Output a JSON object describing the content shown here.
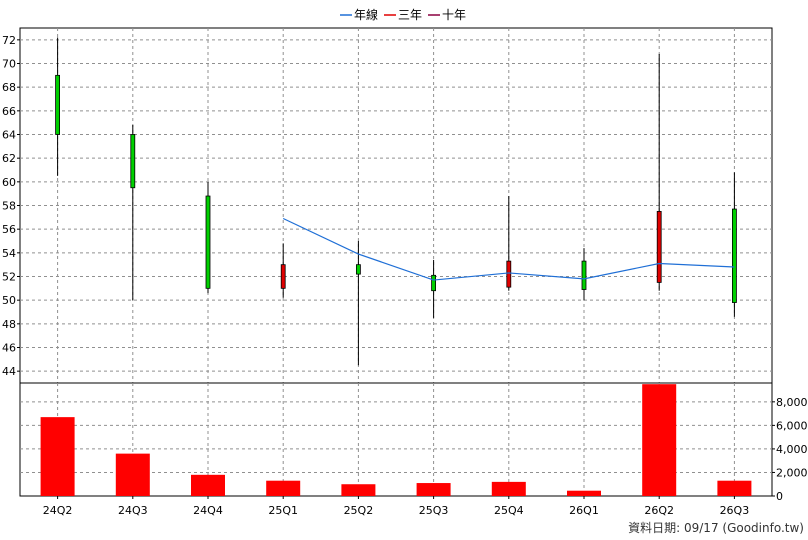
{
  "chart_data": {
    "type": "candlestick",
    "legend": [
      "年線",
      "三年",
      "十年"
    ],
    "colors": {
      "legend": [
        "#1f6fd6",
        "#e00000",
        "#8b0040"
      ],
      "up": "#00d000",
      "down": "#e00000",
      "ma_line": "#1f6fd6",
      "volume": "#ff0000",
      "grid": "#909090"
    },
    "categories": [
      "24Q2",
      "24Q3",
      "24Q4",
      "25Q1",
      "25Q2",
      "25Q3",
      "25Q4",
      "26Q1",
      "26Q2",
      "26Q3"
    ],
    "price_axis": {
      "ticks": [
        "44",
        "46",
        "48",
        "50",
        "52",
        "54",
        "56",
        "58",
        "60",
        "62",
        "64",
        "66",
        "68",
        "70",
        "72"
      ],
      "ylim": [
        43,
        73
      ]
    },
    "volume_axis": {
      "ticks": [
        "0",
        "2,000",
        "4,000",
        "6,000",
        "8,000"
      ],
      "ylim": [
        0,
        9600
      ]
    },
    "ohlc": [
      {
        "open": 64,
        "close": 69,
        "high": 72.2,
        "low": 60.5
      },
      {
        "open": 59.5,
        "close": 64,
        "high": 64.8,
        "low": 50
      },
      {
        "open": 51,
        "close": 58.8,
        "high": 60,
        "low": 50.6
      },
      {
        "open": 53,
        "close": 51,
        "high": 54.8,
        "low": 50.2
      },
      {
        "open": 52.2,
        "close": 53,
        "high": 55,
        "low": 44.5
      },
      {
        "open": 50.8,
        "close": 52.1,
        "high": 53.4,
        "low": 48.5
      },
      {
        "open": 53.3,
        "close": 51.1,
        "high": 58.8,
        "low": 50.8
      },
      {
        "open": 50.9,
        "close": 53.3,
        "high": 54.4,
        "low": 50
      },
      {
        "open": 57.5,
        "close": 51.5,
        "high": 70.8,
        "low": 50.8
      },
      {
        "open": 49.8,
        "close": 57.7,
        "high": 60.8,
        "low": 48.6
      }
    ],
    "year_line": [
      null,
      null,
      null,
      56.9,
      53.9,
      51.7,
      52.3,
      51.8,
      53.1,
      52.8
    ],
    "volume": [
      6700,
      3600,
      1800,
      1300,
      1000,
      1100,
      1200,
      450,
      9500,
      1300
    ]
  },
  "footer": "資料日期: 09/17  (Goodinfo.tw)"
}
